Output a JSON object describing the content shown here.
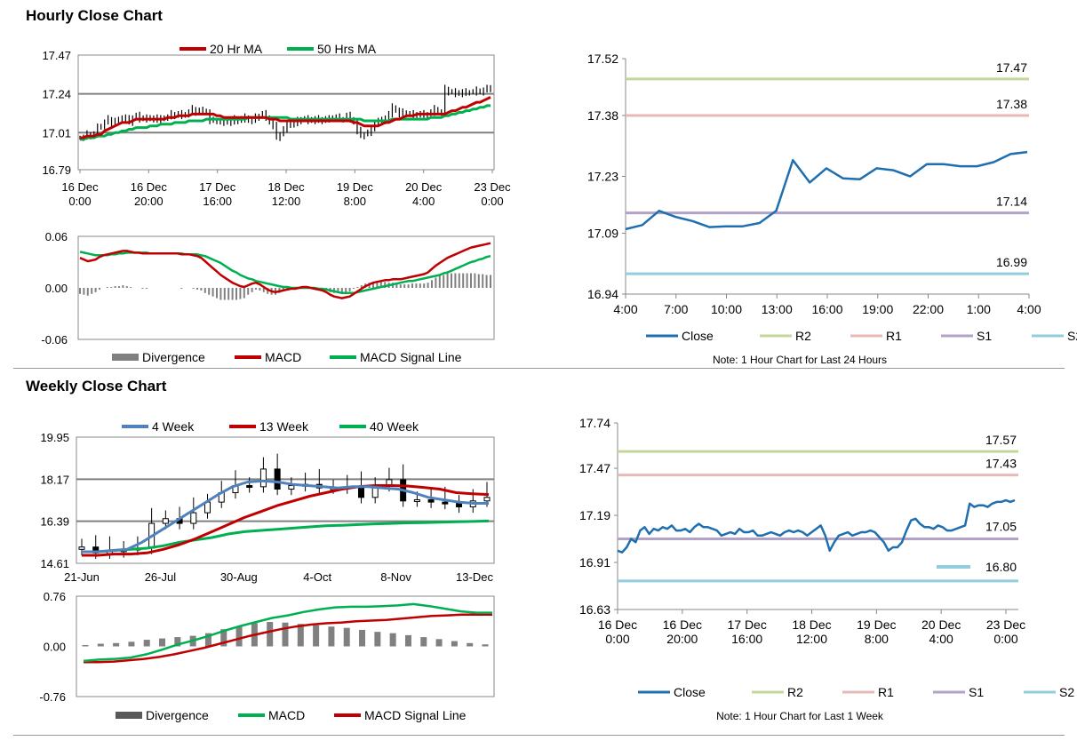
{
  "colors": {
    "ma_red": "#c00000",
    "ma_green": "#00b050",
    "close_blue": "#1f6fb0",
    "r2_line": "#c4d79b",
    "r1_line": "#e6b9b8",
    "s1_line": "#b3a2c7",
    "s2_line": "#93cddd",
    "divergence": "#808080",
    "week4_blue": "#4f81bd",
    "grid": "#808080"
  },
  "sections": {
    "hourly_title": "Hourly Close Chart",
    "weekly_title": "Weekly Close Chart"
  },
  "chart_data": [
    {
      "id": "hourly_price",
      "type": "candlestick",
      "title": "",
      "legend": [
        "20 Hr MA",
        "50 Hrs MA"
      ],
      "ylim": [
        16.79,
        17.47
      ],
      "yticks": [
        "17.47",
        "17.24",
        "17.01",
        "16.79"
      ],
      "xticks": [
        "16 Dec\n0:00",
        "16 Dec\n20:00",
        "17 Dec\n16:00",
        "18 Dec\n12:00",
        "19 Dec\n8:00",
        "20 Dec\n4:00",
        "23 Dec\n0:00"
      ],
      "close": [
        16.98,
        16.98,
        17.0,
        16.99,
        17.0,
        17.04,
        17.05,
        17.07,
        17.09,
        17.06,
        17.08,
        17.08,
        17.1,
        17.09,
        17.07,
        17.1,
        17.11,
        17.09,
        17.1,
        17.09,
        17.09,
        17.1,
        17.08,
        17.09,
        17.1,
        17.1,
        17.12,
        17.11,
        17.12,
        17.11,
        17.12,
        17.13,
        17.15,
        17.13,
        17.14,
        17.14,
        17.13,
        17.08,
        17.08,
        17.08,
        17.07,
        17.07,
        17.08,
        17.07,
        17.09,
        17.08,
        17.09,
        17.1,
        17.08,
        17.08,
        17.1,
        17.11,
        17.12,
        17.1,
        17.07,
        17.05,
        16.98,
        17.0,
        17.03,
        17.05,
        17.07,
        17.06,
        17.08,
        17.09,
        17.09,
        17.08,
        17.09,
        17.08,
        17.09,
        17.08,
        17.09,
        17.09,
        17.1,
        17.1,
        17.09,
        17.09,
        17.11,
        17.09,
        17.07,
        17.02,
        16.99,
        17.0,
        17.01,
        17.03,
        17.07,
        17.08,
        17.08,
        17.1,
        17.12,
        17.16,
        17.14,
        17.12,
        17.13,
        17.12,
        17.12,
        17.11,
        17.12,
        17.12,
        17.11,
        17.12,
        17.13,
        17.15,
        17.13,
        17.13,
        17.27,
        17.25,
        17.25,
        17.24,
        17.25,
        17.24,
        17.25,
        17.25,
        17.25,
        17.26,
        17.25,
        17.26,
        17.27,
        17.28
      ],
      "ma20": [
        16.98,
        16.98,
        16.99,
        16.99,
        16.99,
        17.0,
        17.0,
        17.02,
        17.03,
        17.04,
        17.05,
        17.06,
        17.07,
        17.07,
        17.07,
        17.08,
        17.09,
        17.09,
        17.09,
        17.09,
        17.09,
        17.09,
        17.09,
        17.09,
        17.09,
        17.1,
        17.1,
        17.1,
        17.11,
        17.11,
        17.11,
        17.11,
        17.12,
        17.12,
        17.12,
        17.12,
        17.12,
        17.12,
        17.12,
        17.11,
        17.11,
        17.1,
        17.1,
        17.1,
        17.1,
        17.1,
        17.1,
        17.1,
        17.1,
        17.1,
        17.1,
        17.1,
        17.1,
        17.1,
        17.09,
        17.09,
        17.09,
        17.08,
        17.08,
        17.08,
        17.08,
        17.08,
        17.08,
        17.08,
        17.08,
        17.08,
        17.08,
        17.08,
        17.08,
        17.08,
        17.08,
        17.08,
        17.08,
        17.08,
        17.08,
        17.08,
        17.08,
        17.08,
        17.07,
        17.07,
        17.06,
        17.05,
        17.05,
        17.05,
        17.05,
        17.05,
        17.06,
        17.07,
        17.07,
        17.08,
        17.09,
        17.09,
        17.1,
        17.11,
        17.11,
        17.11,
        17.12,
        17.12,
        17.12,
        17.12,
        17.12,
        17.12,
        17.12,
        17.12,
        17.12,
        17.13,
        17.14,
        17.14,
        17.15,
        17.16,
        17.16,
        17.17,
        17.18,
        17.19,
        17.19,
        17.2,
        17.21,
        17.22
      ],
      "ma50": [
        16.97,
        16.97,
        16.98,
        16.98,
        16.98,
        16.99,
        16.99,
        16.99,
        17.0,
        17.0,
        17.01,
        17.01,
        17.02,
        17.02,
        17.03,
        17.03,
        17.04,
        17.04,
        17.04,
        17.04,
        17.05,
        17.05,
        17.05,
        17.06,
        17.06,
        17.06,
        17.06,
        17.07,
        17.07,
        17.07,
        17.07,
        17.08,
        17.08,
        17.08,
        17.08,
        17.08,
        17.09,
        17.09,
        17.09,
        17.09,
        17.09,
        17.09,
        17.09,
        17.09,
        17.09,
        17.09,
        17.09,
        17.09,
        17.1,
        17.1,
        17.1,
        17.1,
        17.1,
        17.1,
        17.1,
        17.1,
        17.1,
        17.1,
        17.1,
        17.1,
        17.09,
        17.09,
        17.09,
        17.09,
        17.09,
        17.09,
        17.09,
        17.09,
        17.09,
        17.09,
        17.09,
        17.09,
        17.09,
        17.09,
        17.09,
        17.09,
        17.09,
        17.09,
        17.09,
        17.09,
        17.09,
        17.08,
        17.08,
        17.08,
        17.08,
        17.08,
        17.08,
        17.08,
        17.08,
        17.09,
        17.09,
        17.09,
        17.09,
        17.09,
        17.09,
        17.09,
        17.09,
        17.09,
        17.09,
        17.09,
        17.1,
        17.1,
        17.1,
        17.1,
        17.11,
        17.11,
        17.12,
        17.12,
        17.13,
        17.13,
        17.14,
        17.14,
        17.15,
        17.15,
        17.16,
        17.16,
        17.17,
        17.17
      ]
    },
    {
      "id": "hourly_macd",
      "type": "macd",
      "legend": [
        "Divergence",
        "MACD",
        "MACD Signal Line"
      ],
      "ylim": [
        -0.06,
        0.06
      ],
      "yticks": [
        "0.06",
        "0.00",
        "-0.06"
      ],
      "macd": [
        0.035,
        0.033,
        0.031,
        0.032,
        0.033,
        0.036,
        0.038,
        0.039,
        0.04,
        0.041,
        0.042,
        0.043,
        0.043,
        0.042,
        0.041,
        0.041,
        0.04,
        0.04,
        0.04,
        0.04,
        0.04,
        0.04,
        0.04,
        0.04,
        0.04,
        0.04,
        0.039,
        0.039,
        0.039,
        0.038,
        0.037,
        0.035,
        0.031,
        0.027,
        0.023,
        0.019,
        0.015,
        0.012,
        0.009,
        0.006,
        0.004,
        0.002,
        0.001,
        0.003,
        0.005,
        0.006,
        0.004,
        0.001,
        -0.002,
        -0.004,
        -0.005,
        -0.004,
        -0.003,
        -0.002,
        -0.001,
        -0.001,
        0,
        0.001,
        0.001,
        0,
        -0.001,
        -0.002,
        -0.003,
        -0.005,
        -0.008,
        -0.01,
        -0.011,
        -0.012,
        -0.011,
        -0.01,
        -0.007,
        -0.004,
        -0.001,
        0.002,
        0.004,
        0.006,
        0.007,
        0.008,
        0.009,
        0.009,
        0.01,
        0.01,
        0.01,
        0.011,
        0.012,
        0.013,
        0.014,
        0.015,
        0.016,
        0.018,
        0.022,
        0.026,
        0.029,
        0.032,
        0.035,
        0.037,
        0.039,
        0.041,
        0.043,
        0.045,
        0.047,
        0.048,
        0.049,
        0.05,
        0.051,
        0.052
      ],
      "signal": [
        0.042,
        0.041,
        0.04,
        0.039,
        0.038,
        0.038,
        0.038,
        0.038,
        0.039,
        0.039,
        0.04,
        0.04,
        0.041,
        0.041,
        0.041,
        0.041,
        0.041,
        0.041,
        0.04,
        0.04,
        0.04,
        0.04,
        0.04,
        0.04,
        0.04,
        0.04,
        0.04,
        0.039,
        0.039,
        0.039,
        0.039,
        0.038,
        0.037,
        0.035,
        0.033,
        0.031,
        0.029,
        0.026,
        0.023,
        0.02,
        0.018,
        0.015,
        0.013,
        0.011,
        0.01,
        0.008,
        0.007,
        0.006,
        0.005,
        0.004,
        0.003,
        0.002,
        0.001,
        0.001,
        0,
        0,
        0,
        0,
        0,
        0,
        0,
        -0.001,
        -0.001,
        -0.002,
        -0.003,
        -0.004,
        -0.005,
        -0.006,
        -0.006,
        -0.006,
        -0.006,
        -0.005,
        -0.004,
        -0.003,
        -0.002,
        -0.001,
        0,
        0.001,
        0.002,
        0.003,
        0.004,
        0.005,
        0.006,
        0.007,
        0.008,
        0.008,
        0.009,
        0.01,
        0.011,
        0.012,
        0.013,
        0.014,
        0.015,
        0.017,
        0.018,
        0.02,
        0.022,
        0.024,
        0.026,
        0.028,
        0.03,
        0.031,
        0.033,
        0.034,
        0.036,
        0.037
      ]
    },
    {
      "id": "hourly_levels",
      "type": "line",
      "legend": [
        "Close",
        "R2",
        "R1",
        "S1",
        "S2"
      ],
      "note": "Note: 1 Hour Chart for Last 24 Hours",
      "ylim": [
        16.94,
        17.52
      ],
      "yticks": [
        "17.52",
        "17.38",
        "17.23",
        "17.09",
        "16.94"
      ],
      "xticks": [
        "4:00",
        "7:00",
        "10:00",
        "13:00",
        "16:00",
        "19:00",
        "22:00",
        "1:00",
        "4:00"
      ],
      "levels": {
        "R2": 17.47,
        "R1": 17.38,
        "S1": 17.14,
        "S2": 16.99
      },
      "level_labels": {
        "R2": "17.47",
        "R1": "17.38",
        "S1": "17.14",
        "S2": "16.99"
      },
      "close": [
        17.1,
        17.11,
        17.145,
        17.13,
        17.12,
        17.105,
        17.107,
        17.107,
        17.115,
        17.145,
        17.27,
        17.215,
        17.25,
        17.225,
        17.223,
        17.25,
        17.245,
        17.23,
        17.26,
        17.26,
        17.255,
        17.255,
        17.265,
        17.285,
        17.29
      ]
    },
    {
      "id": "weekly_price",
      "type": "candlestick",
      "legend": [
        "4 Week",
        "13 Week",
        "40 Week"
      ],
      "ylim": [
        14.61,
        19.95
      ],
      "yticks": [
        "19.95",
        "18.17",
        "16.39",
        "14.61"
      ],
      "xticks": [
        "21-Jun",
        "26-Jul",
        "30-Aug",
        "4-Oct",
        "8-Nov",
        "13-Dec"
      ],
      "close": [
        15.3,
        15.05,
        15.1,
        15.2,
        15.25,
        16.3,
        16.5,
        16.3,
        16.75,
        17.2,
        17.6,
        17.9,
        17.85,
        18.6,
        17.75,
        17.9,
        17.95,
        17.8,
        17.8,
        17.85,
        17.4,
        17.9,
        18.15,
        17.25,
        17.3,
        17.2,
        17.15,
        17.0,
        17.25,
        17.4
      ],
      "w4": [
        15.1,
        15.1,
        15.15,
        15.2,
        15.5,
        15.9,
        16.3,
        16.7,
        17.1,
        17.5,
        17.85,
        18.05,
        18.1,
        18.05,
        17.95,
        17.9,
        17.85,
        17.8,
        17.85,
        17.85,
        17.8,
        17.75,
        17.6,
        17.4,
        17.3,
        17.2,
        17.15,
        17.15
      ],
      "w13": [
        14.95,
        14.95,
        15.0,
        15.0,
        15.05,
        15.2,
        15.4,
        15.65,
        15.95,
        16.25,
        16.55,
        16.8,
        17.05,
        17.25,
        17.45,
        17.6,
        17.75,
        17.85,
        17.9,
        17.9,
        17.88,
        17.82,
        17.75,
        17.6,
        17.55,
        17.52
      ],
      "w40": [
        15.1,
        15.1,
        15.15,
        15.2,
        15.25,
        15.35,
        15.5,
        15.6,
        15.7,
        15.85,
        15.95,
        16.0,
        16.05,
        16.1,
        16.15,
        16.2,
        16.22,
        16.25,
        16.28,
        16.3,
        16.32,
        16.33,
        16.35,
        16.37,
        16.38,
        16.4
      ]
    },
    {
      "id": "weekly_macd",
      "type": "macd",
      "legend": [
        "Divergence",
        "MACD",
        "MACD Signal Line"
      ],
      "ylim": [
        -0.76,
        0.76
      ],
      "yticks": [
        "0.76",
        "0.00",
        "-0.76"
      ],
      "divergence": [
        0.02,
        0.04,
        0.05,
        0.07,
        0.1,
        0.12,
        0.14,
        0.16,
        0.2,
        0.26,
        0.3,
        0.35,
        0.37,
        0.36,
        0.34,
        0.32,
        0.3,
        0.28,
        0.25,
        0.22,
        0.2,
        0.17,
        0.14,
        0.11,
        0.08,
        0.05,
        0.03
      ],
      "macd": [
        -0.22,
        -0.2,
        -0.19,
        -0.17,
        -0.12,
        -0.05,
        0.03,
        0.09,
        0.16,
        0.24,
        0.31,
        0.37,
        0.43,
        0.47,
        0.52,
        0.56,
        0.59,
        0.6,
        0.6,
        0.61,
        0.62,
        0.64,
        0.61,
        0.57,
        0.53,
        0.51,
        0.51
      ],
      "signal": [
        -0.24,
        -0.24,
        -0.23,
        -0.21,
        -0.19,
        -0.16,
        -0.12,
        -0.07,
        -0.02,
        0.04,
        0.1,
        0.16,
        0.21,
        0.26,
        0.3,
        0.33,
        0.35,
        0.36,
        0.38,
        0.39,
        0.4,
        0.42,
        0.44,
        0.46,
        0.47,
        0.48,
        0.48,
        0.48
      ]
    },
    {
      "id": "weekly_levels",
      "type": "line",
      "legend": [
        "Close",
        "R2",
        "R1",
        "S1",
        "S2"
      ],
      "note": "Note: 1 Hour Chart for Last 1 Week",
      "ylim": [
        16.63,
        17.74
      ],
      "yticks": [
        "17.74",
        "17.47",
        "17.19",
        "16.91",
        "16.63"
      ],
      "xticks": [
        "16 Dec\n0:00",
        "16 Dec\n20:00",
        "17 Dec\n16:00",
        "18 Dec\n12:00",
        "19 Dec\n8:00",
        "20 Dec\n4:00",
        "23 Dec\n0:00"
      ],
      "levels": {
        "R2": 17.57,
        "R1": 17.43,
        "S1": 17.05,
        "S2": 16.8
      },
      "level_labels": {
        "R2": "17.57",
        "R1": "17.43",
        "S1": "17.05",
        "S2": "16.80"
      },
      "close": [
        16.98,
        16.97,
        17.0,
        17.05,
        17.03,
        17.1,
        17.12,
        17.08,
        17.11,
        17.1,
        17.12,
        17.11,
        17.13,
        17.1,
        17.1,
        17.11,
        17.09,
        17.12,
        17.14,
        17.12,
        17.12,
        17.11,
        17.1,
        17.07,
        17.08,
        17.09,
        17.08,
        17.11,
        17.09,
        17.09,
        17.1,
        17.07,
        17.07,
        17.08,
        17.09,
        17.08,
        17.07,
        17.09,
        17.1,
        17.09,
        17.1,
        17.09,
        17.07,
        17.09,
        17.11,
        17.13,
        17.07,
        16.98,
        17.03,
        17.07,
        17.08,
        17.09,
        17.07,
        17.08,
        17.09,
        17.09,
        17.1,
        17.09,
        17.06,
        17.03,
        16.98,
        17.0,
        17.0,
        17.03,
        17.1,
        17.16,
        17.17,
        17.14,
        17.12,
        17.12,
        17.11,
        17.13,
        17.12,
        17.1,
        17.1,
        17.11,
        17.12,
        17.13,
        17.26,
        17.24,
        17.25,
        17.25,
        17.24,
        17.26,
        17.27,
        17.27,
        17.28,
        17.27,
        17.28
      ]
    }
  ]
}
